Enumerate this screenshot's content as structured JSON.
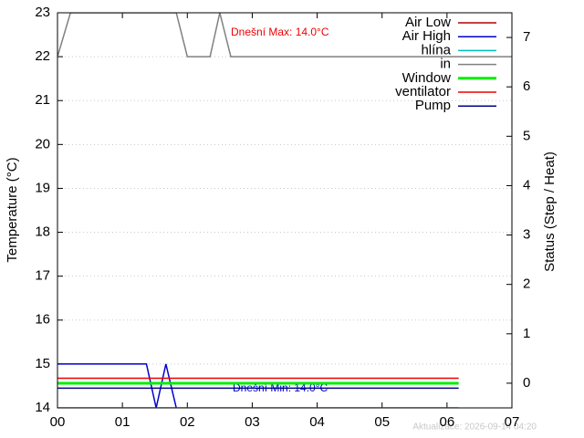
{
  "chart_data": {
    "type": "line",
    "xlabel": null,
    "ylabel": "Temperature (°C)",
    "y2label": "Status (Step / Heat)",
    "xlim": [
      0,
      7
    ],
    "xticks": [
      {
        "value": 0,
        "label": "00"
      },
      {
        "value": 1,
        "label": "01"
      },
      {
        "value": 2,
        "label": "02"
      },
      {
        "value": 3,
        "label": "03"
      },
      {
        "value": 4,
        "label": "04"
      },
      {
        "value": 5,
        "label": "05"
      },
      {
        "value": 6,
        "label": "06"
      },
      {
        "value": 7,
        "label": "07"
      }
    ],
    "ylim": [
      14,
      23
    ],
    "yticks": [
      14,
      15,
      16,
      17,
      18,
      19,
      20,
      21,
      22,
      23
    ],
    "y2lim": [
      -0.5,
      7.5
    ],
    "y2ticks": [
      0,
      1,
      2,
      3,
      4,
      5,
      6,
      7
    ],
    "grid": true,
    "legend": "top-right",
    "series": [
      {
        "name": "Air Low",
        "color": "#b00000",
        "x": [],
        "values": []
      },
      {
        "name": "Air High",
        "color": "#0000cc",
        "x": [
          0,
          1.37,
          1.52,
          1.67,
          1.83
        ],
        "values": [
          15,
          15,
          14,
          15,
          14
        ]
      },
      {
        "name": "hlína",
        "color": "#00c0c0",
        "x": [
          0,
          6.18
        ],
        "values": [
          14,
          14
        ]
      },
      {
        "name": "in",
        "color": "#808080",
        "x": [
          0,
          0.2,
          1.83,
          2.0,
          2.35,
          2.5,
          2.67,
          7
        ],
        "values": [
          22,
          23,
          23,
          22,
          22,
          23,
          22,
          22
        ]
      },
      {
        "name": "Window",
        "color": "#00ee00",
        "axis": "y2",
        "x": [
          0,
          6.18
        ],
        "values": [
          0,
          0
        ]
      },
      {
        "name": "ventilator",
        "color": "#ee0000",
        "axis": "y2",
        "x": [
          0,
          6.18
        ],
        "values": [
          0.1,
          0.1
        ]
      },
      {
        "name": "Pump",
        "color": "#00008b",
        "axis": "y2",
        "x": [
          0,
          6.18
        ],
        "values": [
          -0.1,
          -0.1
        ]
      }
    ],
    "annotations": [
      "Dnešní Max: 14.0°C",
      "Dnešní Min: 14.0°C"
    ],
    "footer": "Aktualizace: 2026-09-14 04:20"
  }
}
